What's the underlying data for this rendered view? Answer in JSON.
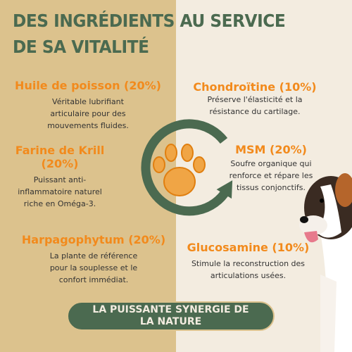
{
  "header": {
    "title_lines": [
      "DES INGRÉDIENTS AU SERVICE",
      "DE SA VITALITÉ"
    ]
  },
  "ingredients": [
    {
      "name": "Huile de poisson (20%)",
      "description": "Véritable lubrifiant articulaire pour des mouvements fluides."
    },
    {
      "name": "Chondroïtine (10%)",
      "description": "Préserve l'élasticité et la résistance du cartilage."
    },
    {
      "name": "Farine de Krill (20%)",
      "description": "Puissant anti-inflammatoire naturel riche en Oméga-3."
    },
    {
      "name": "MSM (20%)",
      "description": "Soufre organique qui renforce et répare les tissus conjonctifs."
    },
    {
      "name": "Harpagophytum (20%)",
      "description": "La plante de référence pour la souplesse et le confort immédiat."
    },
    {
      "name": "Glucosamine (10%)",
      "description": "Stimule la reconstruction des articulations usées."
    }
  ],
  "banner": {
    "text": "LA PUISSANTE SYNERGIE DE LA NATURE"
  }
}
